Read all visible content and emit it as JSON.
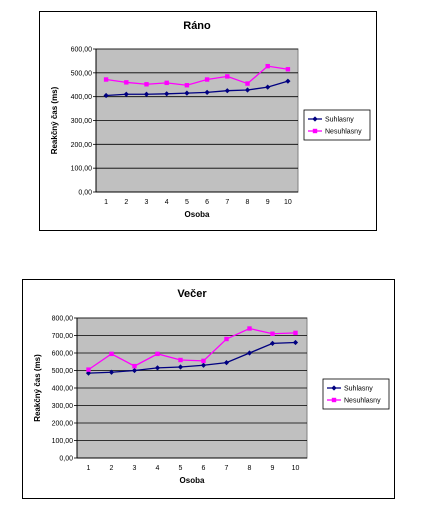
{
  "chart_data": [
    {
      "type": "line",
      "title": "Ráno",
      "xlabel": "Osoba",
      "ylabel": "Reakčný čas (ms)",
      "categories": [
        "1",
        "2",
        "3",
        "4",
        "5",
        "6",
        "7",
        "8",
        "9",
        "10"
      ],
      "ylim": [
        0,
        600
      ],
      "yticks": [
        "0,00",
        "100,00",
        "200,00",
        "300,00",
        "400,00",
        "500,00",
        "600,00"
      ],
      "grid": true,
      "legend_position": "right",
      "series": [
        {
          "name": "Suhlasny",
          "color": "#000080",
          "marker": "diamond",
          "values": [
            405,
            410,
            410,
            412,
            415,
            418,
            425,
            428,
            440,
            465
          ]
        },
        {
          "name": "Nesuhlasny",
          "color": "#ff00ff",
          "marker": "square",
          "values": [
            472,
            460,
            452,
            458,
            448,
            472,
            485,
            455,
            528,
            515
          ]
        }
      ]
    },
    {
      "type": "line",
      "title": "Večer",
      "xlabel": "Osoba",
      "ylabel": "Reakčný čas (ms)",
      "categories": [
        "1",
        "2",
        "3",
        "4",
        "5",
        "6",
        "7",
        "8",
        "9",
        "10"
      ],
      "ylim": [
        0,
        800
      ],
      "yticks": [
        "0,00",
        "100,00",
        "200,00",
        "300,00",
        "400,00",
        "500,00",
        "600,00",
        "700,00",
        "800,00"
      ],
      "grid": true,
      "legend_position": "right",
      "series": [
        {
          "name": "Suhlasny",
          "color": "#000080",
          "marker": "diamond",
          "values": [
            485,
            490,
            500,
            515,
            520,
            530,
            545,
            600,
            655,
            660
          ]
        },
        {
          "name": "Nesuhlasny",
          "color": "#ff00ff",
          "marker": "square",
          "values": [
            505,
            595,
            525,
            595,
            560,
            555,
            680,
            740,
            710,
            715
          ]
        }
      ]
    }
  ]
}
